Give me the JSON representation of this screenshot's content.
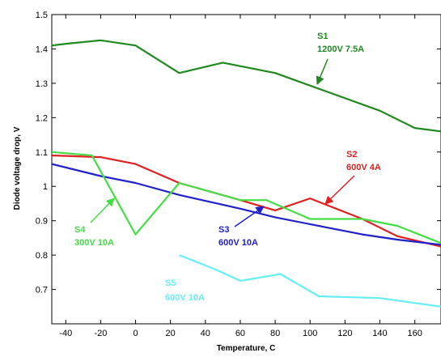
{
  "chart_data": {
    "type": "line",
    "xlabel": "Temperature, C",
    "ylabel": "Diode voltage drop, V",
    "xlim": [
      -48,
      175
    ],
    "ylim": [
      0.6,
      1.5
    ],
    "xticks": [
      -40,
      -20,
      0,
      20,
      40,
      60,
      80,
      100,
      120,
      140,
      160
    ],
    "yticks": [
      0.6,
      0.7,
      0.8,
      0.9,
      1,
      1.1,
      1.2,
      1.3,
      1.4,
      1.5
    ],
    "ytick_labels": [
      "",
      "0.7",
      "0.8",
      "0.9",
      "1",
      "1.1",
      "1.2",
      "1.3",
      "1.4",
      "1.5"
    ],
    "grid": false,
    "series": [
      {
        "name": "S1",
        "color": "#1e8a1e",
        "points": [
          [
            -48,
            1.41
          ],
          [
            -40,
            1.415
          ],
          [
            -20,
            1.425
          ],
          [
            0,
            1.41
          ],
          [
            25,
            1.33
          ],
          [
            50,
            1.36
          ],
          [
            80,
            1.33
          ],
          [
            110,
            1.275
          ],
          [
            140,
            1.22
          ],
          [
            160,
            1.17
          ],
          [
            175,
            1.16
          ]
        ]
      },
      {
        "name": "S2",
        "color": "#e02020",
        "points": [
          [
            -48,
            1.09
          ],
          [
            -20,
            1.085
          ],
          [
            0,
            1.065
          ],
          [
            25,
            1.01
          ],
          [
            60,
            0.96
          ],
          [
            80,
            0.93
          ],
          [
            100,
            0.965
          ],
          [
            130,
            0.905
          ],
          [
            150,
            0.855
          ],
          [
            175,
            0.825
          ]
        ]
      },
      {
        "name": "S3",
        "color": "#2020cc",
        "points": [
          [
            -48,
            1.065
          ],
          [
            -20,
            1.03
          ],
          [
            0,
            1.01
          ],
          [
            25,
            0.975
          ],
          [
            60,
            0.935
          ],
          [
            80,
            0.91
          ],
          [
            110,
            0.88
          ],
          [
            130,
            0.86
          ],
          [
            150,
            0.845
          ],
          [
            175,
            0.83
          ]
        ]
      },
      {
        "name": "S4",
        "color": "#44dd44",
        "points": [
          [
            -48,
            1.1
          ],
          [
            -25,
            1.09
          ],
          [
            0,
            0.86
          ],
          [
            25,
            1.01
          ],
          [
            60,
            0.96
          ],
          [
            75,
            0.96
          ],
          [
            100,
            0.905
          ],
          [
            130,
            0.905
          ],
          [
            150,
            0.885
          ],
          [
            175,
            0.835
          ]
        ]
      },
      {
        "name": "S5",
        "color": "#66eef5",
        "points": [
          [
            25,
            0.8
          ],
          [
            45,
            0.76
          ],
          [
            60,
            0.725
          ],
          [
            83,
            0.745
          ],
          [
            105,
            0.68
          ],
          [
            140,
            0.675
          ],
          [
            175,
            0.65
          ]
        ]
      }
    ],
    "annotations": [
      {
        "label": "S1",
        "sublabel": "1200V 7.5A",
        "color": "#1e8a1e"
      },
      {
        "label": "S2",
        "sublabel": "600V 4A",
        "color": "#e02020"
      },
      {
        "label": "S3",
        "sublabel": "600V 10A",
        "color": "#2020cc"
      },
      {
        "label": "S4",
        "sublabel": "300V 10A",
        "color": "#44dd44"
      },
      {
        "label": "S5",
        "sublabel": "600V 10A",
        "color": "#66eef5"
      }
    ]
  }
}
